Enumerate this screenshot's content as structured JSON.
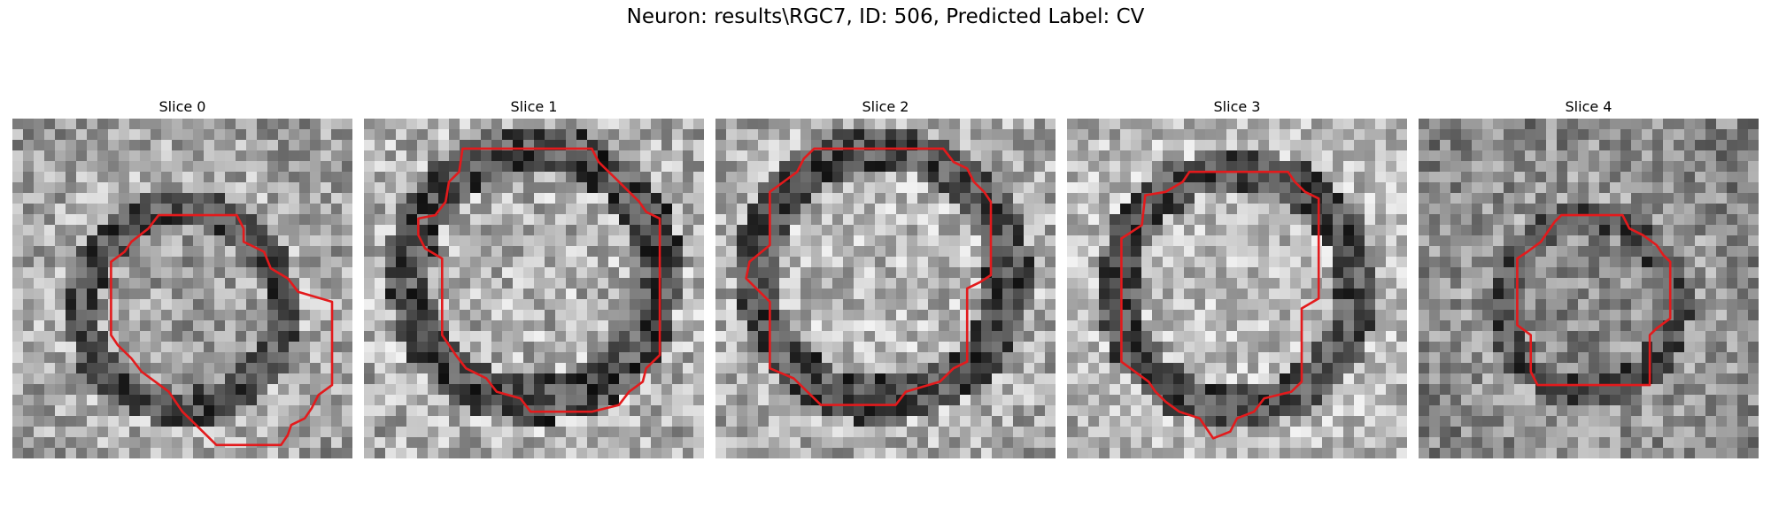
{
  "figure": {
    "title": "Neuron: results\\RGC7, ID: 506, Predicted Label: CV",
    "contour_color": "#e31a1c",
    "colormap": "gray"
  },
  "slices": [
    {
      "label": "Slice 0",
      "seed": 11,
      "contrast": 1.0
    },
    {
      "label": "Slice 1",
      "seed": 23,
      "contrast": 1.1
    },
    {
      "label": "Slice 2",
      "seed": 37,
      "contrast": 1.05
    },
    {
      "label": "Slice 3",
      "seed": 53,
      "contrast": 1.0
    },
    {
      "label": "Slice 4",
      "seed": 71,
      "contrast": 0.95
    }
  ]
}
